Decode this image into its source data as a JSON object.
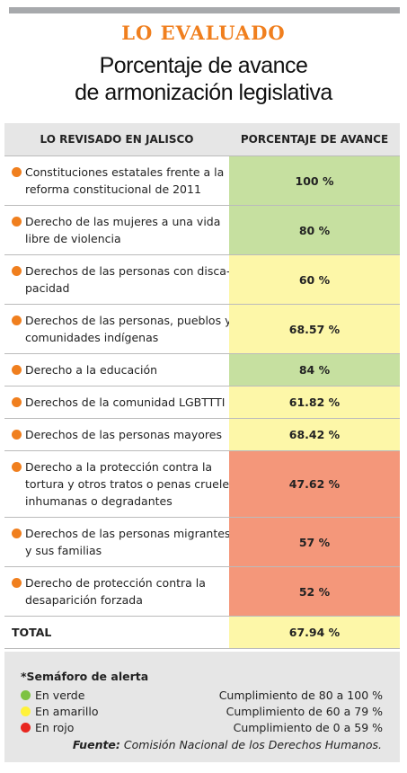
{
  "header": {
    "kicker": "LO EVALUADO",
    "title": [
      "Porcentaje de avance",
      "de armonización legislativa"
    ]
  },
  "table": {
    "columns": [
      "LO REVISADO EN JALISCO",
      "PORCENTAJE DE AVANCE"
    ],
    "rows": [
      {
        "label": [
          "Constituciones estatales frente a la",
          "reforma constitucional de 2011"
        ],
        "value": "100 %",
        "color": "#c6e0a0"
      },
      {
        "label": [
          "Derecho de las mujeres a una vida",
          "libre de violencia"
        ],
        "value": "80 %",
        "color": "#c6e0a0"
      },
      {
        "label": [
          "Derechos de las personas con disca-",
          "pacidad"
        ],
        "value": "60 %",
        "color": "#fdf7a8"
      },
      {
        "label": [
          "Derechos de las personas, pueblos y",
          "comunidades indígenas"
        ],
        "value": "68.57 %",
        "color": "#fdf7a8"
      },
      {
        "label": [
          "Derecho a la educación"
        ],
        "value": "84 %",
        "color": "#c6e0a0"
      },
      {
        "label": [
          "Derechos de la comunidad LGBTTTI"
        ],
        "value": "61.82 %",
        "color": "#fdf7a8"
      },
      {
        "label": [
          "Derechos de las personas mayores"
        ],
        "value": "68.42 %",
        "color": "#fdf7a8"
      },
      {
        "label": [
          "Derecho a la protección contra la",
          "tortura y otros tratos o penas crueles,",
          "inhumanas o degradantes"
        ],
        "value": "47.62 %",
        "color": "#f4977a"
      },
      {
        "label": [
          "Derechos de las personas migrantes",
          "y sus familias"
        ],
        "value": "57 %",
        "color": "#f4977a"
      },
      {
        "label": [
          "Derecho de protección contra la",
          "desaparición forzada"
        ],
        "value": "52 %",
        "color": "#f4977a"
      }
    ],
    "total": {
      "label": "TOTAL",
      "value": "67.94 %",
      "color": "#fdf7a8"
    }
  },
  "legend": {
    "title": "*Semáforo de alerta",
    "items": [
      {
        "label": "En verde",
        "description": "Cumplimiento de 80 a 100 %",
        "color": "#7dc242"
      },
      {
        "label": "En amarillo",
        "description": "Cumplimiento de 60 a 79 %",
        "color": "#fff23a"
      },
      {
        "label": "En rojo",
        "description": "Cumplimiento de 0 a 59 %",
        "color": "#e8261f"
      }
    ]
  },
  "source": {
    "label": "Fuente:",
    "text": "Comisión Nacional de los Derechos Humanos."
  }
}
